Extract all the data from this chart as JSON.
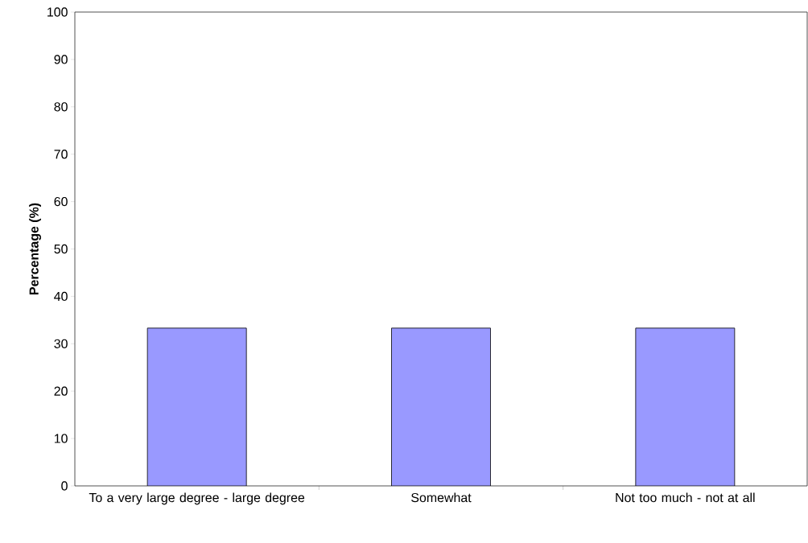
{
  "chart_data": {
    "type": "bar",
    "ylabel": "Percentage (%)",
    "categories": [
      "To a very large degree - large degree",
      "Somewhat",
      "Not too much - not at all"
    ],
    "values": [
      33.3,
      33.3,
      33.3
    ],
    "color": "#9999ff",
    "ylim": [
      0,
      100
    ],
    "yticks": [
      0,
      10,
      20,
      30,
      40,
      50,
      60,
      70,
      80,
      90,
      100
    ]
  }
}
